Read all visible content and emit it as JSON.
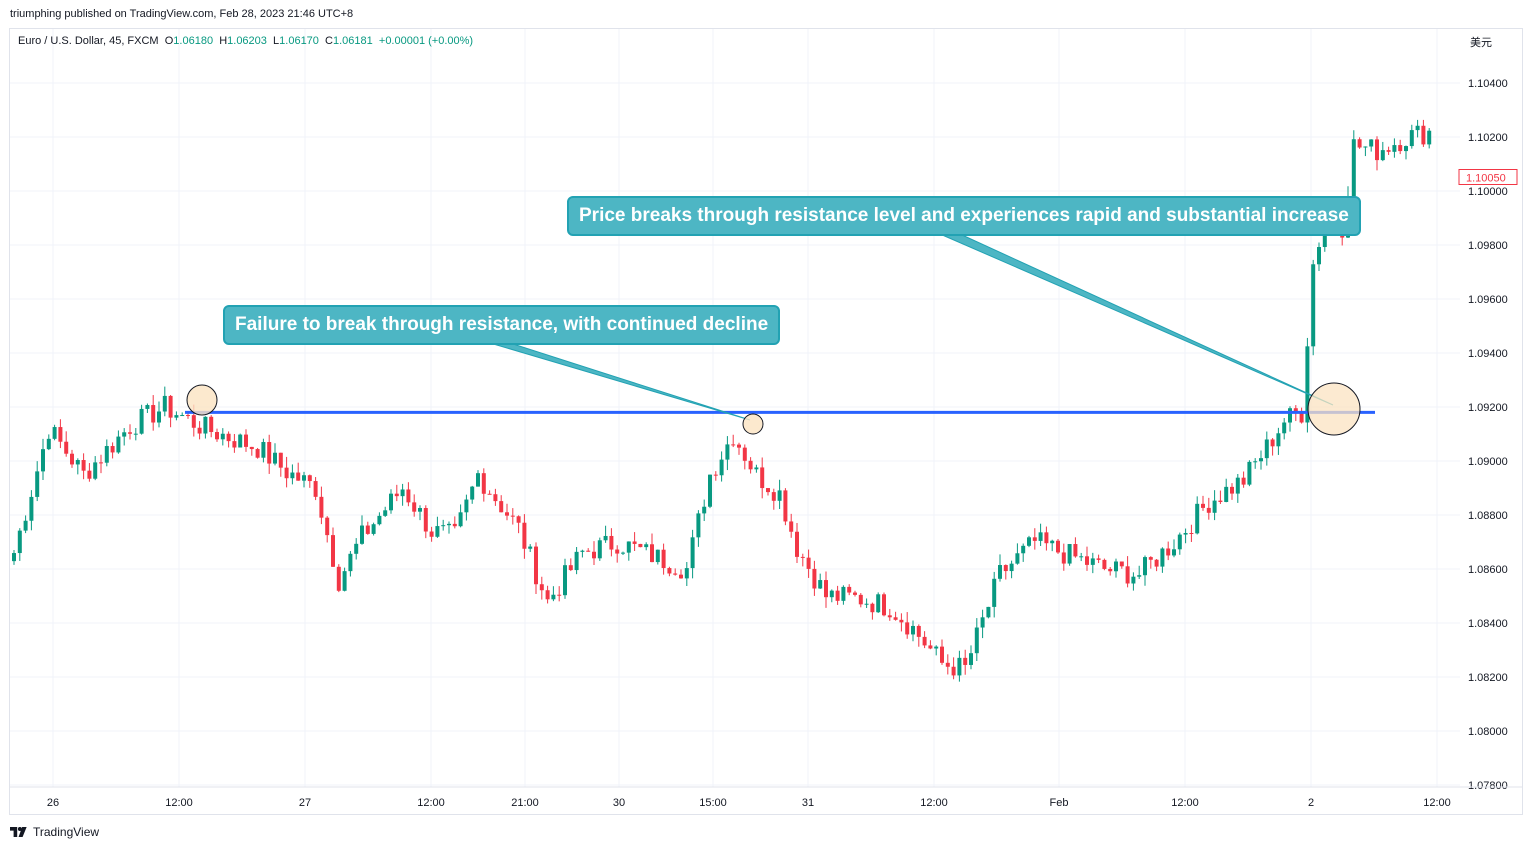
{
  "header": {
    "publish_line": "triumphing published on TradingView.com, Feb 28, 2023 21:46 UTC+8"
  },
  "legend": {
    "symbol": "Euro / U.S. Dollar, 45, FXCM",
    "o_label": "O",
    "o_value": "1.06180",
    "h_label": "H",
    "h_value": "1.06203",
    "l_label": "L",
    "l_value": "1.06170",
    "c_label": "C",
    "c_value": "1.06181",
    "change": "+0.00001 (+0.00%)"
  },
  "currency_label": "美元",
  "footer": {
    "brand": "TradingView"
  },
  "callouts": {
    "upper": "Price breaks through resistance level and experiences rapid and substantial increase",
    "lower": "Failure to break through resistance, with continued decline"
  },
  "colors": {
    "up": "#089981",
    "down": "#f23645",
    "resistance": "#2962ff",
    "callout_bg": "#4db6c4",
    "callout_line": "#22a2b3",
    "marker_fill": "#fbe3c2",
    "grid": "#f0f3fa",
    "text": "#131722"
  },
  "chart_data": {
    "type": "candlestick",
    "title": "Euro / U.S. Dollar, 45, FXCM",
    "ylabel": "美元",
    "ylim": [
      1.0778,
      1.1054
    ],
    "y_ticks": [
      "1.10400",
      "1.10200",
      "1.10000",
      "1.09800",
      "1.09600",
      "1.09400",
      "1.09200",
      "1.09000",
      "1.08800",
      "1.08600",
      "1.08400",
      "1.08200",
      "1.08000",
      "1.07800"
    ],
    "x_ticks": [
      "26",
      "12:00",
      "27",
      "12:00",
      "21:00",
      "30",
      "15:00",
      "31",
      "12:00",
      "Feb",
      "12:00",
      "2",
      "12:00"
    ],
    "last_price": "1.10050",
    "resistance_level": 1.0918,
    "grid": true,
    "candle_close_path": [
      {
        "i": 0,
        "c": 1.0866
      },
      {
        "i": 6,
        "c": 1.0912
      },
      {
        "i": 12,
        "c": 1.0895
      },
      {
        "i": 20,
        "c": 1.0913
      },
      {
        "i": 26,
        "c": 1.092
      },
      {
        "i": 33,
        "c": 1.0912
      },
      {
        "i": 42,
        "c": 1.0905
      },
      {
        "i": 47,
        "c": 1.0896
      },
      {
        "i": 52,
        "c": 1.089
      },
      {
        "i": 56,
        "c": 1.0856
      },
      {
        "i": 60,
        "c": 1.0872
      },
      {
        "i": 67,
        "c": 1.089
      },
      {
        "i": 72,
        "c": 1.0874
      },
      {
        "i": 76,
        "c": 1.0872
      },
      {
        "i": 80,
        "c": 1.0895
      },
      {
        "i": 87,
        "c": 1.0875
      },
      {
        "i": 92,
        "c": 1.0848
      },
      {
        "i": 98,
        "c": 1.0866
      },
      {
        "i": 104,
        "c": 1.087
      },
      {
        "i": 110,
        "c": 1.0865
      },
      {
        "i": 116,
        "c": 1.086
      },
      {
        "i": 120,
        "c": 1.0895
      },
      {
        "i": 124,
        "c": 1.091
      },
      {
        "i": 128,
        "c": 1.0895
      },
      {
        "i": 132,
        "c": 1.0888
      },
      {
        "i": 135,
        "c": 1.0868
      },
      {
        "i": 140,
        "c": 1.085
      },
      {
        "i": 146,
        "c": 1.0849
      },
      {
        "i": 151,
        "c": 1.0846
      },
      {
        "i": 155,
        "c": 1.0838
      },
      {
        "i": 160,
        "c": 1.0825
      },
      {
        "i": 164,
        "c": 1.0823
      },
      {
        "i": 170,
        "c": 1.0858
      },
      {
        "i": 176,
        "c": 1.087
      },
      {
        "i": 182,
        "c": 1.0865
      },
      {
        "i": 188,
        "c": 1.086
      },
      {
        "i": 194,
        "c": 1.0858
      },
      {
        "i": 200,
        "c": 1.087
      },
      {
        "i": 206,
        "c": 1.0885
      },
      {
        "i": 212,
        "c": 1.0893
      },
      {
        "i": 216,
        "c": 1.0905
      },
      {
        "i": 219,
        "c": 1.0915
      },
      {
        "i": 222,
        "c": 1.0918
      },
      {
        "i": 224,
        "c": 1.0973
      },
      {
        "i": 226,
        "c": 1.099
      },
      {
        "i": 229,
        "c": 1.0987
      },
      {
        "i": 231,
        "c": 1.1017
      },
      {
        "i": 235,
        "c": 1.1015
      },
      {
        "i": 240,
        "c": 1.102
      },
      {
        "i": 244,
        "c": 1.1022
      }
    ]
  }
}
